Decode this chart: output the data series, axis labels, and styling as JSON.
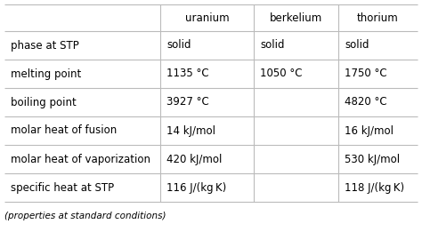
{
  "col_headers": [
    "",
    "uranium",
    "berkelium",
    "thorium"
  ],
  "rows": [
    [
      "phase at STP",
      "solid",
      "solid",
      "solid"
    ],
    [
      "melting point",
      "1135 °C",
      "1050 °C",
      "1750 °C"
    ],
    [
      "boiling point",
      "3927 °C",
      "",
      "4820 °C"
    ],
    [
      "molar heat of fusion",
      "14 kJ/mol",
      "",
      "16 kJ/mol"
    ],
    [
      "molar heat of vaporization",
      "420 kJ/mol",
      "",
      "530 kJ/mol"
    ],
    [
      "specific heat at STP",
      "116 J/(kg K)",
      "",
      "118 J/(kg K)"
    ]
  ],
  "footer": "(properties at standard conditions)",
  "bg_color": "#ffffff",
  "line_color": "#bbbbbb",
  "text_color": "#000000",
  "header_font_size": 8.5,
  "cell_font_size": 8.5,
  "footer_font_size": 7.5,
  "figsize": [
    4.74,
    2.61
  ],
  "dpi": 100
}
